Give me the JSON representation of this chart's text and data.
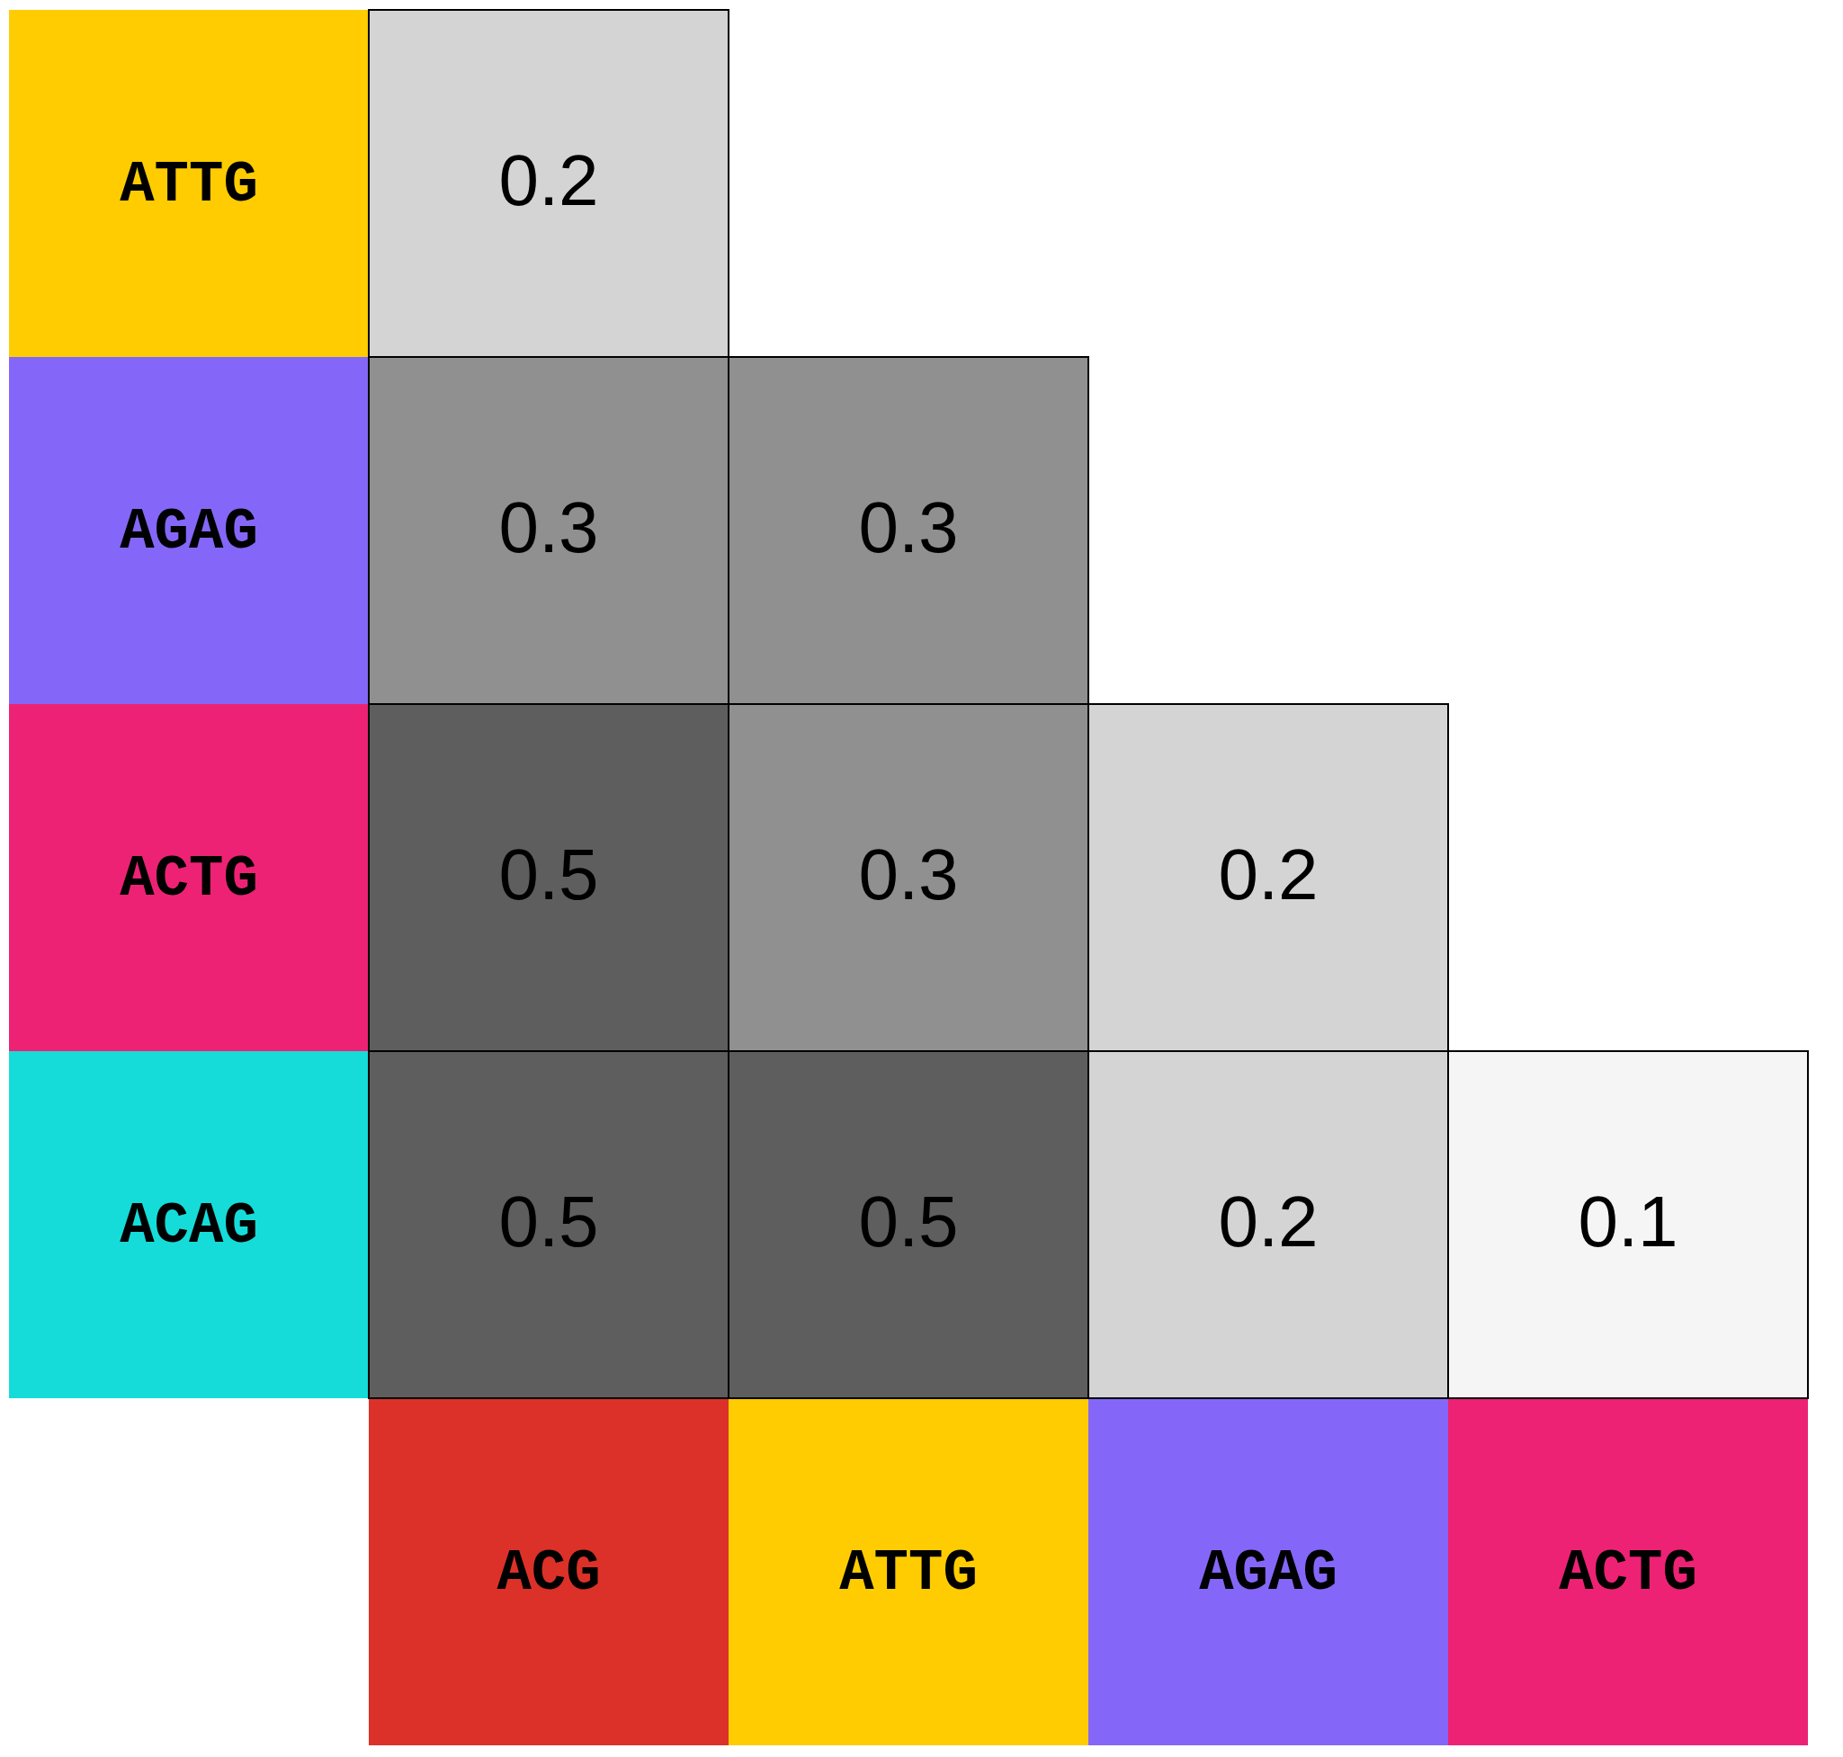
{
  "chart_data": {
    "type": "heatmap",
    "categories": [
      "ACG",
      "ATTG",
      "AGAG",
      "ACTG"
    ],
    "y_categories": [
      "ATTG",
      "AGAG",
      "ACTG",
      "ACAG"
    ],
    "cells": [
      [
        0.2,
        null,
        null,
        null
      ],
      [
        0.3,
        0.3,
        null,
        null
      ],
      [
        0.5,
        0.3,
        0.2,
        null
      ],
      [
        0.5,
        0.5,
        0.2,
        0.1
      ]
    ],
    "data_labels": true
  }
}
